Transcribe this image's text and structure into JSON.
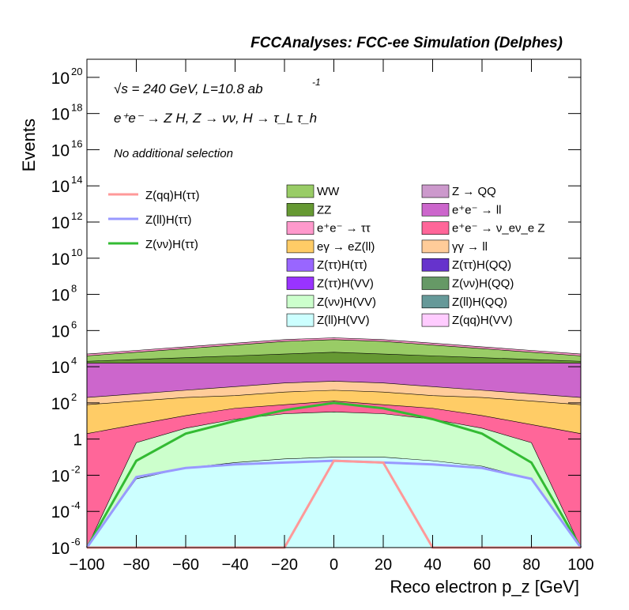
{
  "header": {
    "title": "FCCAnalyses: FCC-ee Simulation (Delphes)"
  },
  "annotations": {
    "energy": "√s = 240 GeV, L=10.8 ab",
    "energy_exp": "-1",
    "process": "e⁺e⁻ → Z H, Z → νν, H → τ_L τ_h",
    "selection": "No additional selection"
  },
  "chart_data": {
    "type": "histogram",
    "xlabel": "Reco electron p_z [GeV]",
    "ylabel": "Events",
    "xlim": [
      -100,
      100
    ],
    "ylim_log10": [
      -6,
      21
    ],
    "yscale": "log",
    "xticks": [
      "−100",
      "−80",
      "−60",
      "−40",
      "−20",
      "0",
      "20",
      "40",
      "60",
      "80",
      "100"
    ],
    "yticks": [
      {
        "base": "10",
        "exp": "20",
        "value": 20
      },
      {
        "base": "10",
        "exp": "18",
        "value": 18
      },
      {
        "base": "10",
        "exp": "16",
        "value": 16
      },
      {
        "base": "10",
        "exp": "14",
        "value": 14
      },
      {
        "base": "10",
        "exp": "12",
        "value": 12
      },
      {
        "base": "10",
        "exp": "10",
        "value": 10
      },
      {
        "base": "10",
        "exp": "8",
        "value": 8
      },
      {
        "base": "10",
        "exp": "6",
        "value": 6
      },
      {
        "base": "10",
        "exp": "4",
        "value": 4
      },
      {
        "base": "10",
        "exp": "2",
        "value": 2
      },
      {
        "base": "1",
        "exp": "",
        "value": 0
      },
      {
        "base": "10",
        "exp": "-2",
        "value": -2
      },
      {
        "base": "10",
        "exp": "-4",
        "value": -4
      },
      {
        "base": "10",
        "exp": "-6",
        "value": -6
      }
    ],
    "stack_note": "stacked backgrounds, log10 of cumulative top at x bin centers",
    "x_points": [
      -100,
      -80,
      -60,
      -40,
      -20,
      0,
      20,
      40,
      60,
      80,
      100
    ],
    "stack_layers": [
      {
        "name": "Z(ll)H(VV)",
        "color": "#ccffff",
        "log_top": [
          -6,
          -2.2,
          -1.6,
          -1.3,
          -1.1,
          -1.0,
          -1.0,
          -1.2,
          -1.5,
          -2.2,
          -6
        ]
      },
      {
        "name": "Z(νν)H(VV)",
        "color": "#ccffcc",
        "log_top": [
          -6,
          -0.2,
          0.6,
          1.1,
          1.4,
          1.5,
          1.4,
          1.1,
          0.6,
          -0.2,
          -6
        ]
      },
      {
        "name": "e⁺e⁻ → ν_eν_e Z",
        "color": "#ff6699",
        "log_top": [
          0.3,
          0.8,
          1.3,
          1.7,
          1.9,
          2.1,
          1.9,
          1.7,
          1.3,
          0.8,
          0.3
        ]
      },
      {
        "name": "eγ → eZ(ll)",
        "color": "#ffcc66",
        "log_top": [
          1.9,
          2.1,
          2.3,
          2.4,
          2.6,
          2.7,
          2.6,
          2.4,
          2.3,
          2.1,
          1.9
        ]
      },
      {
        "name": "γγ → ll",
        "color": "#ffcc99",
        "log_top": [
          2.3,
          2.5,
          2.7,
          2.9,
          3.1,
          3.2,
          3.1,
          2.9,
          2.7,
          2.5,
          2.3
        ]
      },
      {
        "name": "e⁺e⁻ → ll",
        "color": "#cc66cc",
        "log_top": [
          4.2,
          4.2,
          4.2,
          4.2,
          4.2,
          4.2,
          4.2,
          4.2,
          4.2,
          4.2,
          4.2
        ]
      },
      {
        "name": "ZZ",
        "color": "#669933",
        "log_top": [
          4.3,
          4.4,
          4.5,
          4.6,
          4.7,
          4.8,
          4.7,
          4.6,
          4.5,
          4.4,
          4.3
        ]
      },
      {
        "name": "WW",
        "color": "#99cc66",
        "log_top": [
          4.6,
          4.8,
          5.0,
          5.2,
          5.4,
          5.5,
          5.4,
          5.2,
          5.0,
          4.8,
          4.6
        ]
      },
      {
        "name": "e⁺e⁻ → ττ",
        "color": "#ff99cc",
        "log_top": [
          4.7,
          4.9,
          5.1,
          5.3,
          5.5,
          5.6,
          5.5,
          5.3,
          5.1,
          4.9,
          4.7
        ]
      }
    ],
    "lines": [
      {
        "name": "Z(νν)H(ττ)",
        "color": "#33bb33",
        "log_y": [
          -6,
          -1.2,
          0.3,
          1.0,
          1.6,
          2.0,
          1.7,
          1.1,
          0.3,
          -1.3,
          -6
        ]
      },
      {
        "name": "Z(ll)H(ττ)",
        "color": "#9999ff",
        "log_y": [
          -6,
          -2.1,
          -1.6,
          -1.4,
          -1.3,
          -1.2,
          -1.3,
          -1.4,
          -1.6,
          -2.2,
          -6
        ]
      },
      {
        "name": "Z(qq)H(ττ)",
        "color": "#ff9999",
        "log_y": [
          -6,
          -6,
          -6,
          -6,
          -6,
          -1.2,
          -1.3,
          -6,
          -6,
          -6,
          -6
        ]
      }
    ],
    "legend_lines": [
      {
        "name": "Z(qq)H(ττ)",
        "color": "#ff9999"
      },
      {
        "name": "Z(ll)H(ττ)",
        "color": "#9999ff"
      },
      {
        "name": "Z(νν)H(ττ)",
        "color": "#33bb33"
      }
    ],
    "legend_fills": [
      {
        "name": "WW",
        "color": "#99cc66"
      },
      {
        "name": "Z → QQ",
        "color": "#cc99cc"
      },
      {
        "name": "ZZ",
        "color": "#669933"
      },
      {
        "name": "e⁺e⁻ → ll",
        "color": "#cc66cc"
      },
      {
        "name": "e⁺e⁻ → ττ",
        "color": "#ff99cc"
      },
      {
        "name": "e⁺e⁻ → ν_eν_e Z",
        "color": "#ff6699"
      },
      {
        "name": "eγ → eZ(ll)",
        "color": "#ffcc66"
      },
      {
        "name": "γγ → ll",
        "color": "#ffcc99"
      },
      {
        "name": "Z(ττ)H(ττ)",
        "color": "#9966ff"
      },
      {
        "name": "Z(ττ)H(QQ)",
        "color": "#6633cc"
      },
      {
        "name": "Z(ττ)H(VV)",
        "color": "#9933ff"
      },
      {
        "name": "Z(νν)H(QQ)",
        "color": "#669966"
      },
      {
        "name": "Z(νν)H(VV)",
        "color": "#ccffcc"
      },
      {
        "name": "Z(ll)H(QQ)",
        "color": "#669999"
      },
      {
        "name": "Z(ll)H(VV)",
        "color": "#ccffff"
      },
      {
        "name": "Z(qq)H(VV)",
        "color": "#ffccff"
      }
    ]
  }
}
